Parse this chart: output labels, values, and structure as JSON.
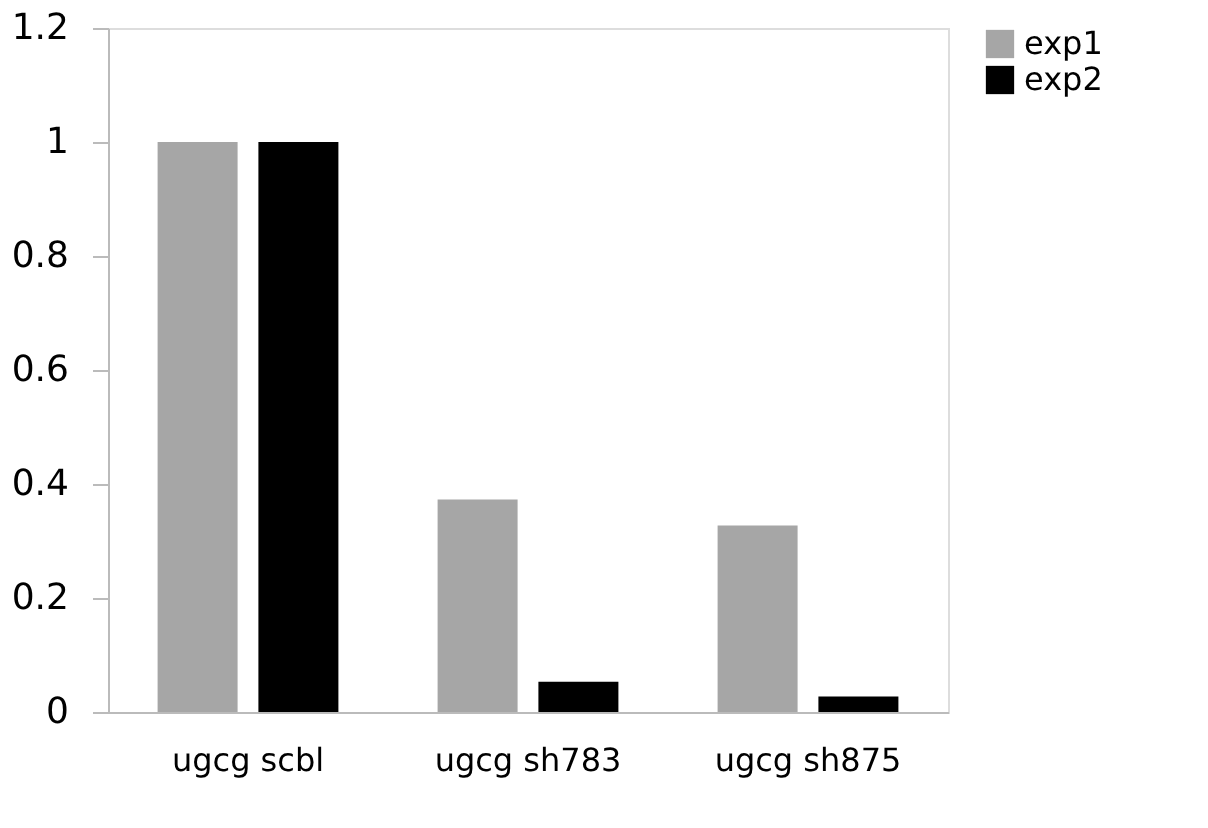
{
  "chart_data": {
    "type": "bar",
    "categories": [
      "ugcg scbl",
      "ugcg sh783",
      "ugcg sh875"
    ],
    "series": [
      {
        "name": "exp1",
        "color": "#a6a6a6",
        "values": [
          1,
          0.373,
          0.327
        ]
      },
      {
        "name": "exp2",
        "color": "#000000",
        "values": [
          1,
          0.053,
          0.027
        ]
      }
    ],
    "ylim": [
      0,
      1.2
    ],
    "yticks": [
      0,
      0.2,
      0.4,
      0.6,
      0.8,
      1,
      1.2
    ],
    "grid": false,
    "legend": "right"
  }
}
